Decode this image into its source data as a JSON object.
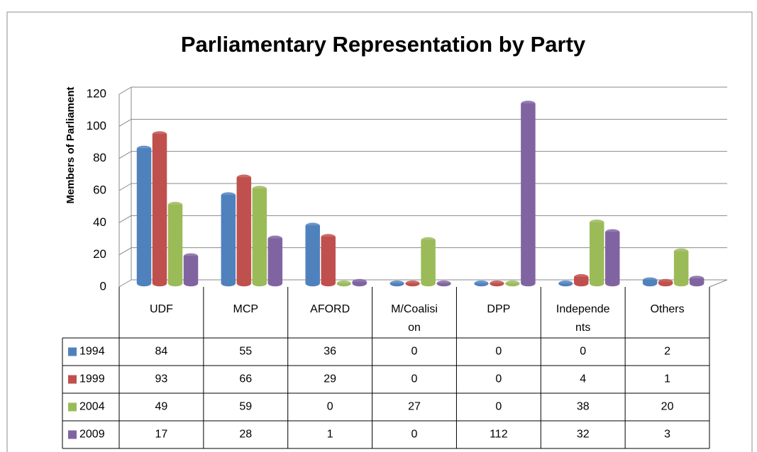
{
  "chart_data": {
    "type": "bar3d",
    "title": "Parliamentary Representation by Party",
    "y_label": "Members of Parliament",
    "categories": [
      "UDF",
      "MCP",
      "AFORD",
      "M/Coalision",
      "DPP",
      "Independents",
      "Others"
    ],
    "series": [
      {
        "name": "1994",
        "color": "#4f81bd",
        "values": [
          84,
          55,
          36,
          0,
          0,
          0,
          2
        ]
      },
      {
        "name": "1999",
        "color": "#c0504d",
        "values": [
          93,
          66,
          29,
          0,
          0,
          4,
          1
        ]
      },
      {
        "name": "2004",
        "color": "#9bbb59",
        "values": [
          49,
          59,
          0,
          27,
          0,
          38,
          20
        ]
      },
      {
        "name": "2009",
        "color": "#8064a2",
        "values": [
          17,
          28,
          1,
          0,
          112,
          32,
          3
        ]
      }
    ],
    "ylim": [
      0,
      120
    ],
    "yticks": [
      0,
      20,
      40,
      60,
      80,
      100,
      120
    ],
    "grid": true,
    "data_table": true
  }
}
